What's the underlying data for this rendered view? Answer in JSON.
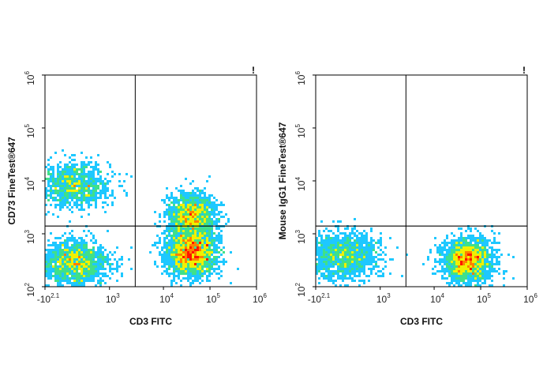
{
  "chart_data": [
    {
      "type": "scatter",
      "subtype": "flow-cytometry-density-plot",
      "title": "",
      "flag": "!",
      "xlabel": "CD3 FITC",
      "ylabel": "CD73 FineTest®647",
      "x_scale": "biexponential",
      "y_scale": "log",
      "x_tick_labels": [
        {
          "base": "-10",
          "exp": "2.1"
        },
        {
          "base": "10",
          "exp": "3"
        },
        {
          "base": "10",
          "exp": "4"
        },
        {
          "base": "10",
          "exp": "5"
        },
        {
          "base": "10",
          "exp": "6"
        }
      ],
      "y_tick_labels": [
        {
          "base": "10",
          "exp": "2"
        },
        {
          "base": "10",
          "exp": "3"
        },
        {
          "base": "10",
          "exp": "4"
        },
        {
          "base": "10",
          "exp": "5"
        },
        {
          "base": "10",
          "exp": "6"
        }
      ],
      "quadrant_gate": {
        "x": 3000,
        "y": 1400
      },
      "populations": [
        {
          "name": "CD3- CD73+",
          "x_center_log": 2.6,
          "y_center_log": 3.95,
          "relative_density": 0.35
        },
        {
          "name": "CD3- CD73-",
          "x_center_log": 2.6,
          "y_center_log": 2.45,
          "relative_density": 0.6
        },
        {
          "name": "CD3+ CD73-",
          "x_center_log": 4.65,
          "y_center_log": 2.65,
          "relative_density": 1.0
        },
        {
          "name": "CD3+ CD73+",
          "x_center_log": 4.65,
          "y_center_log": 3.35,
          "relative_density": 0.55
        }
      ]
    },
    {
      "type": "scatter",
      "subtype": "flow-cytometry-density-plot",
      "title": "",
      "flag": "!",
      "xlabel": "CD3 FITC",
      "ylabel": "Mouse IgG1 FineTest®647",
      "x_scale": "biexponential",
      "y_scale": "log",
      "x_tick_labels": [
        {
          "base": "-10",
          "exp": "2.1"
        },
        {
          "base": "10",
          "exp": "3"
        },
        {
          "base": "10",
          "exp": "4"
        },
        {
          "base": "10",
          "exp": "5"
        },
        {
          "base": "10",
          "exp": "6"
        }
      ],
      "y_tick_labels": [
        {
          "base": "10",
          "exp": "2"
        },
        {
          "base": "10",
          "exp": "3"
        },
        {
          "base": "10",
          "exp": "4"
        },
        {
          "base": "10",
          "exp": "5"
        },
        {
          "base": "10",
          "exp": "6"
        }
      ],
      "quadrant_gate": {
        "x": 3000,
        "y": 1400
      },
      "populations": [
        {
          "name": "CD3-",
          "x_center_log": 2.55,
          "y_center_log": 2.6,
          "relative_density": 0.55
        },
        {
          "name": "CD3+",
          "x_center_log": 4.75,
          "y_center_log": 2.5,
          "relative_density": 1.0
        }
      ]
    }
  ],
  "colors": {
    "density_scale": [
      "#1a2be0",
      "#1ec8ff",
      "#3fe08a",
      "#f0f000",
      "#ff8000",
      "#ff1500"
    ],
    "gate_line": "#000000",
    "frame": "#000000"
  }
}
